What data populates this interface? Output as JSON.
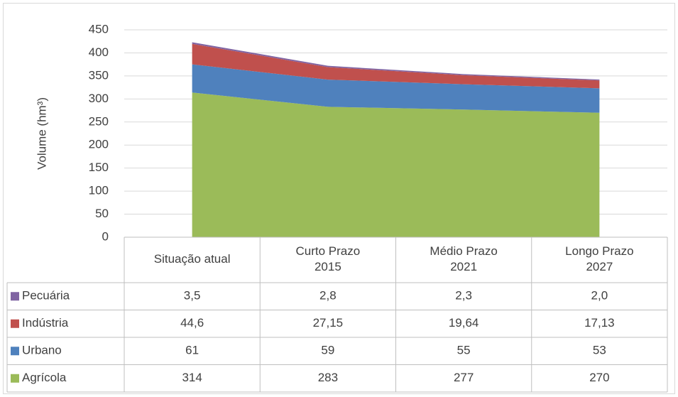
{
  "chart_data": {
    "type": "stacked_area",
    "y_label": "Volume (hm³)",
    "categories": [
      "Situação atual",
      "Curto Prazo\n2015",
      "Médio Prazo\n2021",
      "Longo Prazo\n2027"
    ],
    "series": [
      {
        "name": "Pecuária",
        "color": "#8064a2",
        "values": [
          3.5,
          2.8,
          2.3,
          2.0
        ],
        "value_labels": [
          "3,5",
          "2,8",
          "2,3",
          "2,0"
        ]
      },
      {
        "name": "Indústria",
        "color": "#c0504d",
        "values": [
          44.6,
          27.15,
          19.64,
          17.13
        ],
        "value_labels": [
          "44,6",
          "27,15",
          "19,64",
          "17,13"
        ]
      },
      {
        "name": "Urbano",
        "color": "#4f81bd",
        "values": [
          61,
          59,
          55,
          53
        ]
      },
      {
        "name": "Agrícola",
        "color": "#9bbb59",
        "values": [
          314,
          283,
          277,
          270
        ]
      }
    ],
    "ylim": [
      0,
      450
    ],
    "yticks": [
      0,
      50,
      100,
      150,
      200,
      250,
      300,
      350,
      400,
      450
    ],
    "grid": true
  }
}
